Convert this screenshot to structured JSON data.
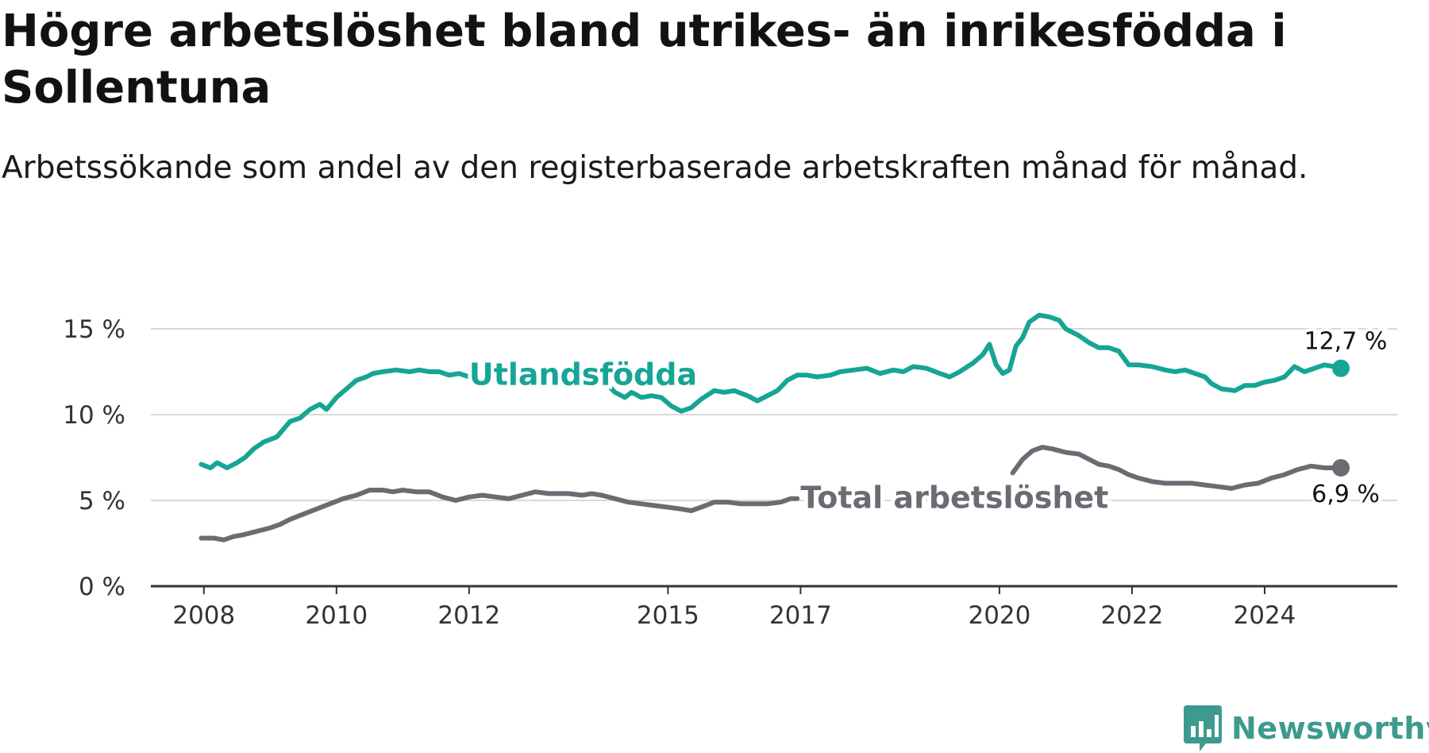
{
  "title": "Högre arbetslöshet bland utrikes- än inrikesfödda i Sollentuna",
  "subtitle": "Arbetssökande som andel av den registerbaserade arbetskraften månad för månad.",
  "brand": {
    "name": "Newsworthy",
    "color": "#3d9a8f",
    "icon": "newsworthy-chart-bubble-icon"
  },
  "chart_data": {
    "type": "line",
    "x_unit": "year",
    "xlim": [
      2007.2,
      2026.0
    ],
    "ylim": [
      0,
      15
    ],
    "yticks": [
      {
        "value": 0,
        "label": "0 %"
      },
      {
        "value": 5,
        "label": "5 %"
      },
      {
        "value": 10,
        "label": "10 %"
      },
      {
        "value": 15,
        "label": "15 %"
      }
    ],
    "xticks": [
      {
        "value": 2008,
        "label": "2008"
      },
      {
        "value": 2010,
        "label": "2010"
      },
      {
        "value": 2012,
        "label": "2012"
      },
      {
        "value": 2015,
        "label": "2015"
      },
      {
        "value": 2017,
        "label": "2017"
      },
      {
        "value": 2020,
        "label": "2020"
      },
      {
        "value": 2022,
        "label": "2022"
      },
      {
        "value": 2024,
        "label": "2024"
      }
    ],
    "grid": true,
    "series": [
      {
        "name": "Utlandsfödda",
        "color": "#16a595",
        "end_label": "12,7 %",
        "points": [
          [
            2007.96,
            7.1
          ],
          [
            2008.1,
            6.9
          ],
          [
            2008.2,
            7.2
          ],
          [
            2008.35,
            6.9
          ],
          [
            2008.5,
            7.2
          ],
          [
            2008.62,
            7.5
          ],
          [
            2008.75,
            8.0
          ],
          [
            2008.9,
            8.4
          ],
          [
            2009.1,
            8.7
          ],
          [
            2009.3,
            9.6
          ],
          [
            2009.45,
            9.8
          ],
          [
            2009.6,
            10.3
          ],
          [
            2009.75,
            10.6
          ],
          [
            2009.85,
            10.3
          ],
          [
            2010.0,
            11.0
          ],
          [
            2010.15,
            11.5
          ],
          [
            2010.3,
            12.0
          ],
          [
            2010.45,
            12.2
          ],
          [
            2010.55,
            12.4
          ],
          [
            2010.7,
            12.5
          ],
          [
            2010.9,
            12.6
          ],
          [
            2011.1,
            12.5
          ],
          [
            2011.25,
            12.6
          ],
          [
            2011.4,
            12.5
          ],
          [
            2011.55,
            12.5
          ],
          [
            2011.7,
            12.3
          ],
          [
            2011.85,
            12.4
          ],
          [
            2012.0,
            12.2
          ],
          [
            2012.1,
            12.3
          ],
          [
            2012.2,
            11.9
          ],
          [
            2012.3,
            11.9
          ]
        ],
        "points_2": [
          [
            2014.05,
            11.9
          ],
          [
            2014.2,
            11.3
          ],
          [
            2014.35,
            11.0
          ],
          [
            2014.45,
            11.3
          ],
          [
            2014.6,
            11.0
          ],
          [
            2014.75,
            11.1
          ],
          [
            2014.9,
            11.0
          ],
          [
            2015.05,
            10.5
          ],
          [
            2015.2,
            10.2
          ],
          [
            2015.35,
            10.4
          ],
          [
            2015.5,
            10.9
          ],
          [
            2015.7,
            11.4
          ],
          [
            2015.85,
            11.3
          ],
          [
            2016.0,
            11.4
          ],
          [
            2016.2,
            11.1
          ],
          [
            2016.35,
            10.8
          ],
          [
            2016.5,
            11.1
          ],
          [
            2016.65,
            11.4
          ],
          [
            2016.8,
            12.0
          ],
          [
            2016.95,
            12.3
          ],
          [
            2017.1,
            12.3
          ],
          [
            2017.25,
            12.2
          ],
          [
            2017.45,
            12.3
          ],
          [
            2017.6,
            12.5
          ],
          [
            2017.8,
            12.6
          ],
          [
            2018.0,
            12.7
          ],
          [
            2018.2,
            12.4
          ],
          [
            2018.4,
            12.6
          ],
          [
            2018.55,
            12.5
          ],
          [
            2018.7,
            12.8
          ],
          [
            2018.9,
            12.7
          ],
          [
            2019.1,
            12.4
          ],
          [
            2019.25,
            12.2
          ],
          [
            2019.4,
            12.5
          ],
          [
            2019.6,
            13.0
          ],
          [
            2019.75,
            13.5
          ],
          [
            2019.85,
            14.1
          ],
          [
            2019.95,
            12.9
          ],
          [
            2020.05,
            12.4
          ],
          [
            2020.15,
            12.6
          ],
          [
            2020.25,
            14.0
          ],
          [
            2020.35,
            14.5
          ],
          [
            2020.45,
            15.4
          ],
          [
            2020.6,
            15.8
          ],
          [
            2020.75,
            15.7
          ],
          [
            2020.9,
            15.5
          ],
          [
            2021.0,
            15.0
          ],
          [
            2021.2,
            14.6
          ],
          [
            2021.35,
            14.2
          ],
          [
            2021.5,
            13.9
          ],
          [
            2021.65,
            13.9
          ],
          [
            2021.8,
            13.7
          ],
          [
            2021.95,
            12.9
          ],
          [
            2022.1,
            12.9
          ],
          [
            2022.3,
            12.8
          ],
          [
            2022.5,
            12.6
          ],
          [
            2022.65,
            12.5
          ],
          [
            2022.8,
            12.6
          ],
          [
            2022.95,
            12.4
          ],
          [
            2023.1,
            12.2
          ],
          [
            2023.2,
            11.8
          ],
          [
            2023.35,
            11.5
          ],
          [
            2023.55,
            11.4
          ],
          [
            2023.7,
            11.7
          ],
          [
            2023.85,
            11.7
          ],
          [
            2024.0,
            11.9
          ],
          [
            2024.15,
            12.0
          ],
          [
            2024.3,
            12.2
          ],
          [
            2024.45,
            12.8
          ],
          [
            2024.6,
            12.5
          ],
          [
            2024.75,
            12.7
          ],
          [
            2024.9,
            12.9
          ],
          [
            2025.05,
            12.8
          ],
          [
            2025.15,
            12.7
          ]
        ]
      },
      {
        "name": "Total arbetslöshet",
        "color": "#6c6b73",
        "end_label": "6,9 %",
        "points": [
          [
            2007.96,
            2.8
          ],
          [
            2008.15,
            2.8
          ],
          [
            2008.3,
            2.7
          ],
          [
            2008.45,
            2.9
          ],
          [
            2008.6,
            3.0
          ],
          [
            2008.8,
            3.2
          ],
          [
            2009.0,
            3.4
          ],
          [
            2009.15,
            3.6
          ],
          [
            2009.3,
            3.9
          ],
          [
            2009.5,
            4.2
          ],
          [
            2009.7,
            4.5
          ],
          [
            2009.9,
            4.8
          ],
          [
            2010.1,
            5.1
          ],
          [
            2010.3,
            5.3
          ],
          [
            2010.5,
            5.6
          ],
          [
            2010.7,
            5.6
          ],
          [
            2010.85,
            5.5
          ],
          [
            2011.0,
            5.6
          ],
          [
            2011.2,
            5.5
          ],
          [
            2011.4,
            5.5
          ],
          [
            2011.6,
            5.2
          ],
          [
            2011.8,
            5.0
          ],
          [
            2012.0,
            5.2
          ],
          [
            2012.2,
            5.3
          ],
          [
            2012.4,
            5.2
          ],
          [
            2012.6,
            5.1
          ],
          [
            2012.8,
            5.3
          ],
          [
            2013.0,
            5.5
          ],
          [
            2013.2,
            5.4
          ],
          [
            2013.5,
            5.4
          ],
          [
            2013.7,
            5.3
          ],
          [
            2013.85,
            5.4
          ],
          [
            2014.0,
            5.3
          ],
          [
            2014.2,
            5.1
          ],
          [
            2014.4,
            4.9
          ],
          [
            2014.6,
            4.8
          ],
          [
            2014.8,
            4.7
          ],
          [
            2015.0,
            4.6
          ],
          [
            2015.2,
            4.5
          ],
          [
            2015.35,
            4.4
          ],
          [
            2015.5,
            4.6
          ],
          [
            2015.7,
            4.9
          ],
          [
            2015.9,
            4.9
          ],
          [
            2016.1,
            4.8
          ],
          [
            2016.3,
            4.8
          ],
          [
            2016.5,
            4.8
          ],
          [
            2016.7,
            4.9
          ],
          [
            2016.85,
            5.1
          ],
          [
            2016.95,
            5.1
          ]
        ],
        "points_2": [
          [
            2020.2,
            6.6
          ],
          [
            2020.35,
            7.4
          ],
          [
            2020.5,
            7.9
          ],
          [
            2020.65,
            8.1
          ],
          [
            2020.8,
            8.0
          ],
          [
            2021.0,
            7.8
          ],
          [
            2021.2,
            7.7
          ],
          [
            2021.35,
            7.4
          ],
          [
            2021.5,
            7.1
          ],
          [
            2021.65,
            7.0
          ],
          [
            2021.8,
            6.8
          ],
          [
            2021.95,
            6.5
          ],
          [
            2022.1,
            6.3
          ],
          [
            2022.3,
            6.1
          ],
          [
            2022.5,
            6.0
          ],
          [
            2022.7,
            6.0
          ],
          [
            2022.9,
            6.0
          ],
          [
            2023.1,
            5.9
          ],
          [
            2023.3,
            5.8
          ],
          [
            2023.5,
            5.7
          ],
          [
            2023.7,
            5.9
          ],
          [
            2023.9,
            6.0
          ],
          [
            2024.1,
            6.3
          ],
          [
            2024.3,
            6.5
          ],
          [
            2024.5,
            6.8
          ],
          [
            2024.7,
            7.0
          ],
          [
            2024.9,
            6.9
          ],
          [
            2025.05,
            6.9
          ],
          [
            2025.15,
            6.9
          ]
        ]
      }
    ]
  }
}
